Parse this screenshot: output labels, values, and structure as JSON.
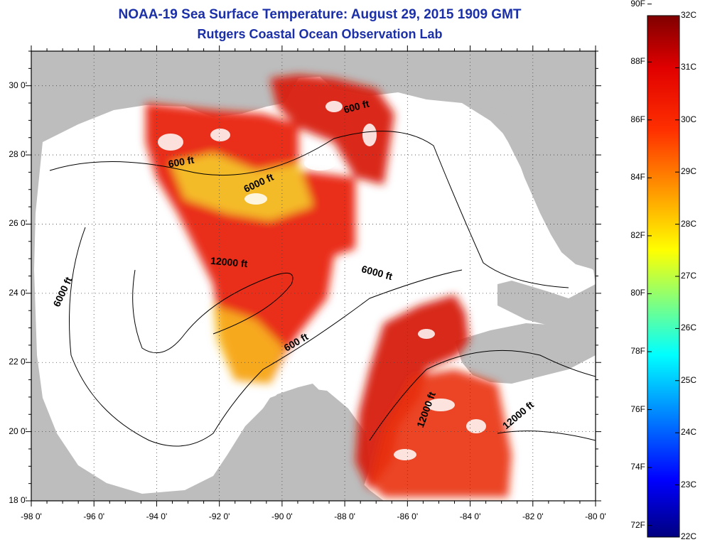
{
  "title": {
    "line1": "NOAA-19 Sea Surface Temperature:  August 29, 2015 1909 GMT",
    "line2": "Rutgers Coastal Ocean Observation Lab"
  },
  "map": {
    "region": "Gulf of Mexico",
    "lon_range": [
      -98,
      -80
    ],
    "lat_range": [
      18,
      31
    ],
    "grid": "dotted",
    "colors": {
      "land": "#bdbdbd",
      "no_data": "#ffffff",
      "frame": "#000000"
    },
    "x_ticks": [
      "-98 0'",
      "-96 0'",
      "-94 0'",
      "-92 0'",
      "-90 0'",
      "-88 0'",
      "-86 0'",
      "-84 0'",
      "-82 0'",
      "-80 0'"
    ],
    "y_ticks": [
      "30 0'",
      "28 0'",
      "26 0'",
      "24 0'",
      "22 0'",
      "20 0'",
      "18 0'"
    ],
    "contour_labels": [
      {
        "text": "600 ft",
        "lon": -93.2,
        "lat": 27.7,
        "rot": -10
      },
      {
        "text": "600 ft",
        "lon": -87.6,
        "lat": 29.3,
        "rot": -15
      },
      {
        "text": "6000 ft",
        "lon": -90.7,
        "lat": 27.1,
        "rot": -25
      },
      {
        "text": "6000 ft",
        "lon": -96.9,
        "lat": 24.0,
        "rot": -65
      },
      {
        "text": "12000 ft",
        "lon": -91.7,
        "lat": 24.8,
        "rot": 5
      },
      {
        "text": "6000 ft",
        "lon": -87.0,
        "lat": 24.5,
        "rot": 15
      },
      {
        "text": "600 ft",
        "lon": -89.5,
        "lat": 22.5,
        "rot": -30
      },
      {
        "text": "12000 ft",
        "lon": -85.3,
        "lat": 20.6,
        "rot": -70
      },
      {
        "text": "12000 ft",
        "lon": -82.4,
        "lat": 20.4,
        "rot": -40
      }
    ]
  },
  "colorbar": {
    "f_labels": [
      "90F",
      "88F",
      "86F",
      "84F",
      "82F",
      "80F",
      "78F",
      "76F",
      "74F",
      "72F"
    ],
    "c_labels": [
      "32C",
      "31C",
      "30C",
      "29C",
      "28C",
      "27C",
      "26C",
      "25C",
      "24C",
      "23C",
      "22C"
    ],
    "c_range": [
      22,
      32
    ],
    "colors": [
      "#00007f",
      "#0000ff",
      "#007fff",
      "#00ffff",
      "#7fff7f",
      "#ffff00",
      "#ff7f00",
      "#ff0000",
      "#7f0000"
    ]
  }
}
